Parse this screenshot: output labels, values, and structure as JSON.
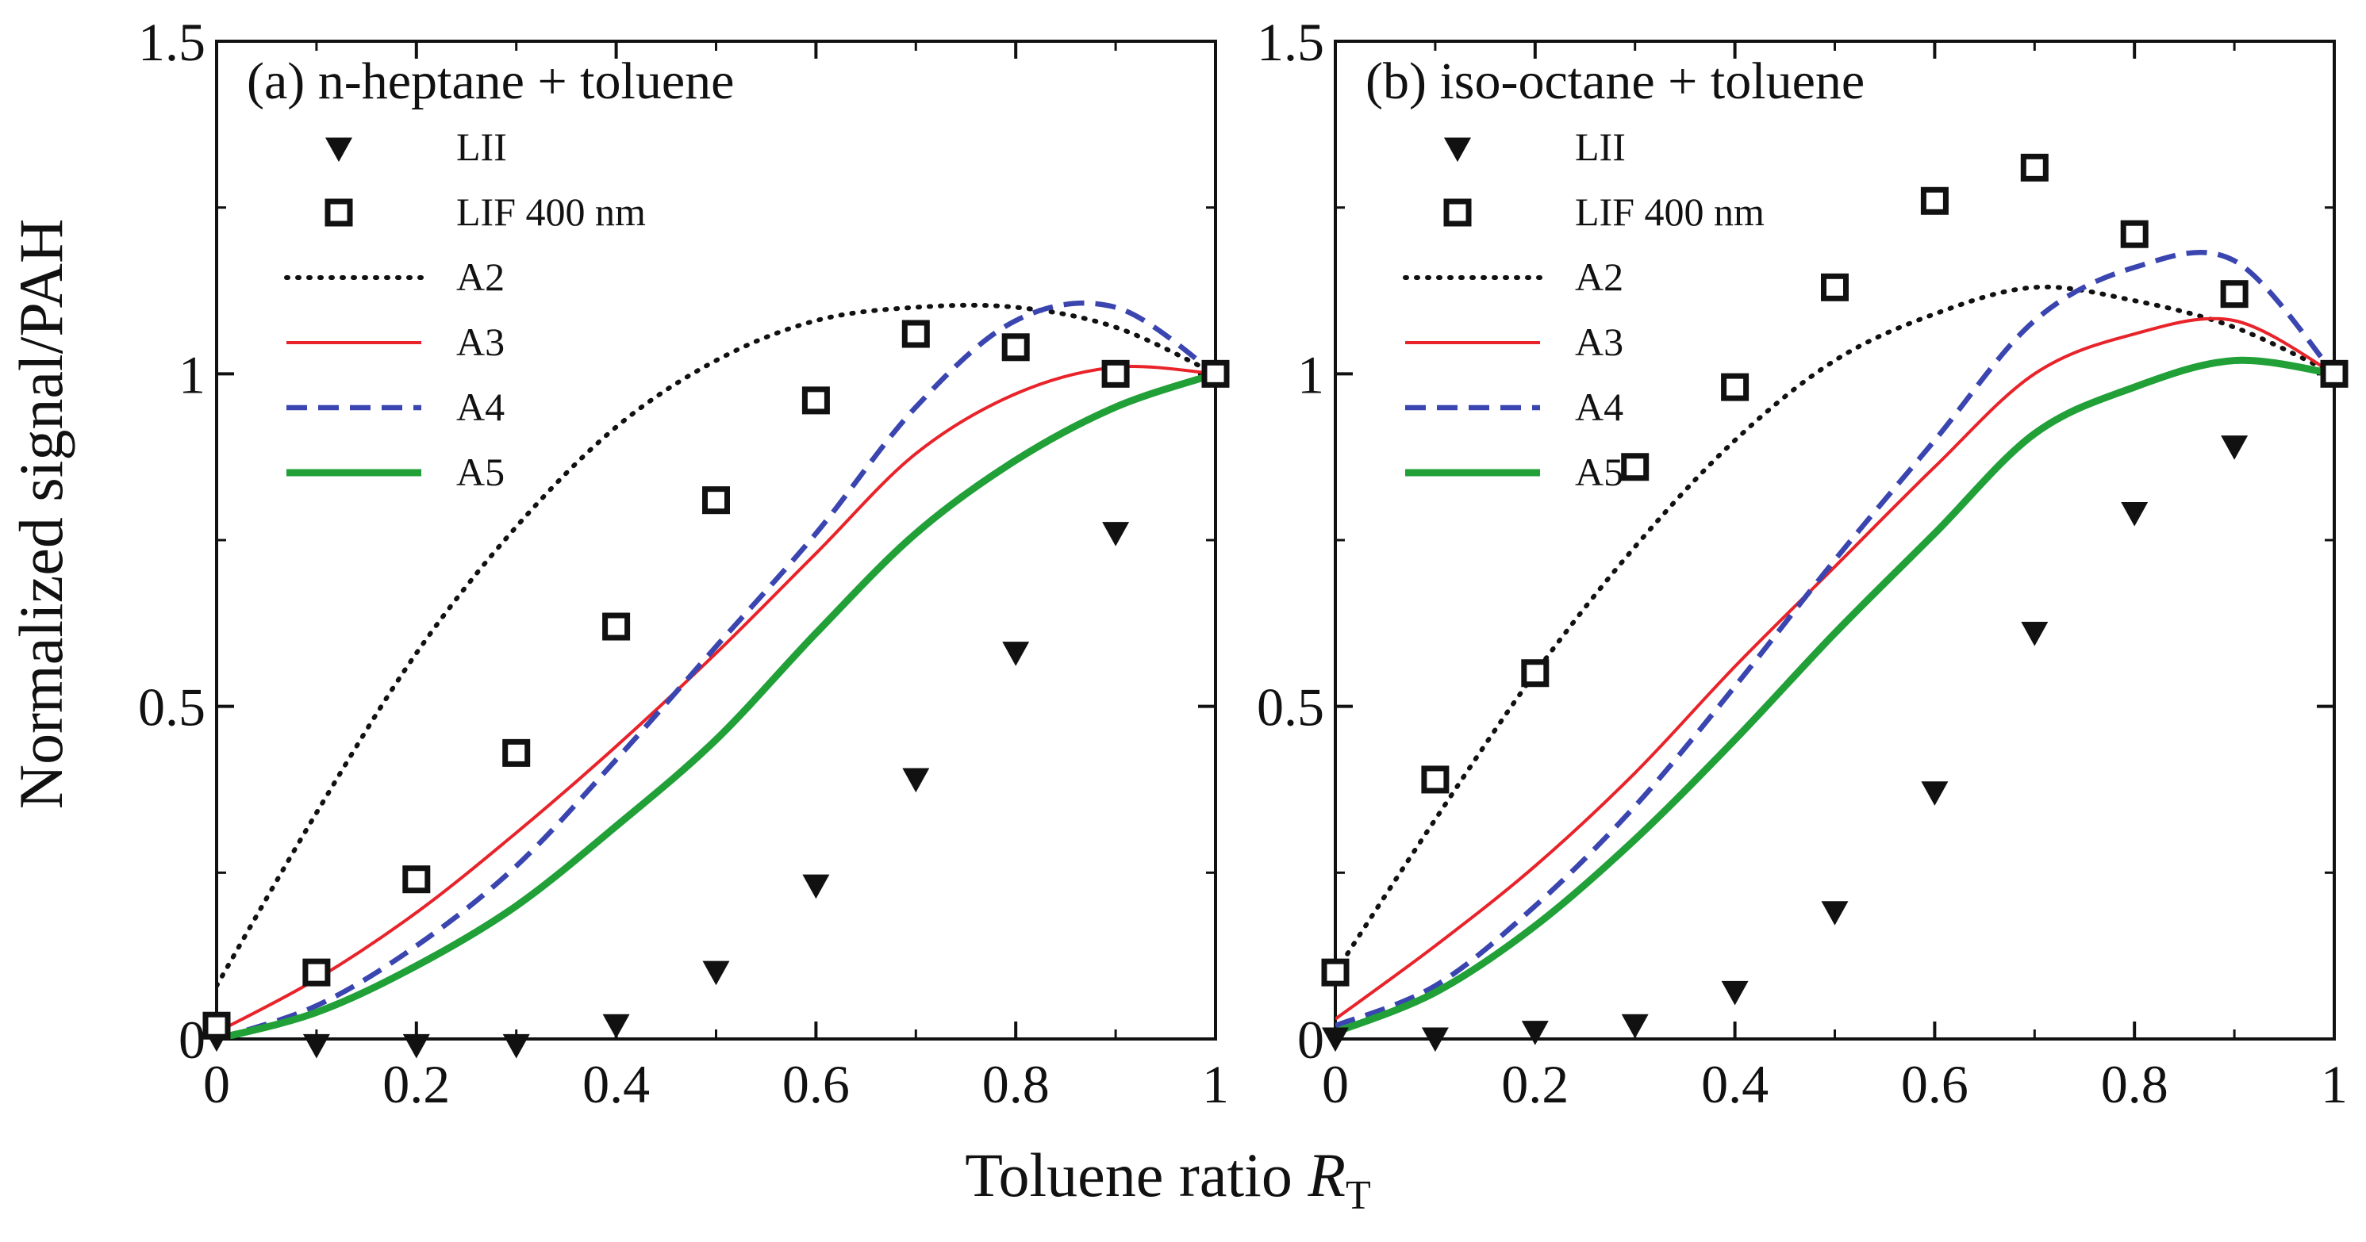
{
  "figure": {
    "ylabel": "Normalized signal/PAH",
    "xlabel_main": "Toluene ratio ",
    "xlabel_italic": "R",
    "xlabel_sub": "T"
  },
  "chart_data": [
    {
      "type": "scatter",
      "title": "(a) n-heptane + toluene",
      "xlim": [
        0,
        1
      ],
      "ylim": [
        0,
        1.5
      ],
      "xticks": [
        "0",
        "0.2",
        "0.4",
        "0.6",
        "0.8",
        "1"
      ],
      "yticks": [
        "0",
        "0.5",
        "1",
        "1.5"
      ],
      "grid": false,
      "legend_position": "top-left",
      "series": [
        {
          "name": "LII",
          "kind": "marker-triangle-down",
          "color": "#111111",
          "x": [
            0,
            0.1,
            0.2,
            0.3,
            0.4,
            0.5,
            0.6,
            0.7,
            0.8,
            0.9,
            1.0
          ],
          "y": [
            0.0,
            -0.01,
            -0.01,
            -0.01,
            0.02,
            0.1,
            0.23,
            0.39,
            0.58,
            0.76,
            1.0
          ]
        },
        {
          "name": "LIF 400 nm",
          "kind": "marker-square-open",
          "color": "#111111",
          "x": [
            0,
            0.1,
            0.2,
            0.3,
            0.4,
            0.5,
            0.6,
            0.7,
            0.8,
            0.9,
            1.0
          ],
          "y": [
            0.02,
            0.1,
            0.24,
            0.43,
            0.62,
            0.81,
            0.96,
            1.06,
            1.04,
            1.0,
            1.0
          ]
        },
        {
          "name": "A2",
          "kind": "line-dotted",
          "color": "#111111",
          "x": [
            0,
            0.1,
            0.2,
            0.3,
            0.4,
            0.5,
            0.6,
            0.7,
            0.8,
            0.9,
            1.0
          ],
          "y": [
            0.08,
            0.34,
            0.58,
            0.77,
            0.92,
            1.02,
            1.08,
            1.1,
            1.1,
            1.07,
            1.0
          ]
        },
        {
          "name": "A3",
          "kind": "line-solid-thin",
          "color": "#e8232a",
          "x": [
            0,
            0.1,
            0.2,
            0.3,
            0.4,
            0.5,
            0.6,
            0.7,
            0.8,
            0.9,
            1.0
          ],
          "y": [
            0.01,
            0.09,
            0.19,
            0.31,
            0.44,
            0.58,
            0.73,
            0.88,
            0.97,
            1.01,
            1.0
          ]
        },
        {
          "name": "A4",
          "kind": "line-dashed",
          "color": "#3a45b0",
          "x": [
            0,
            0.1,
            0.2,
            0.3,
            0.4,
            0.5,
            0.6,
            0.7,
            0.8,
            0.9,
            1.0
          ],
          "y": [
            0.0,
            0.05,
            0.14,
            0.26,
            0.42,
            0.59,
            0.76,
            0.95,
            1.08,
            1.1,
            1.0
          ]
        },
        {
          "name": "A5",
          "kind": "line-solid-thick",
          "color": "#21a038",
          "x": [
            0,
            0.1,
            0.2,
            0.3,
            0.4,
            0.5,
            0.6,
            0.7,
            0.8,
            0.9,
            1.0
          ],
          "y": [
            0.0,
            0.04,
            0.11,
            0.2,
            0.32,
            0.45,
            0.61,
            0.76,
            0.87,
            0.95,
            1.0
          ]
        }
      ]
    },
    {
      "type": "scatter",
      "title": "(b) iso-octane + toluene",
      "xlim": [
        0,
        1
      ],
      "ylim": [
        0,
        1.5
      ],
      "xticks": [
        "0",
        "0.2",
        "0.4",
        "0.6",
        "0.8",
        "1"
      ],
      "yticks": [
        "0",
        "0.5",
        "1",
        "1.5"
      ],
      "grid": false,
      "legend_position": "top-left",
      "series": [
        {
          "name": "LII",
          "kind": "marker-triangle-down",
          "color": "#111111",
          "x": [
            0,
            0.1,
            0.2,
            0.3,
            0.4,
            0.5,
            0.6,
            0.7,
            0.8,
            0.9,
            1.0
          ],
          "y": [
            0.0,
            0.0,
            0.01,
            0.02,
            0.07,
            0.19,
            0.37,
            0.61,
            0.79,
            0.89,
            1.0
          ]
        },
        {
          "name": "LIF 400 nm",
          "kind": "marker-square-open",
          "color": "#111111",
          "x": [
            0,
            0.1,
            0.2,
            0.3,
            0.4,
            0.5,
            0.6,
            0.7,
            0.8,
            0.9,
            1.0
          ],
          "y": [
            0.1,
            0.39,
            0.55,
            0.86,
            0.98,
            1.13,
            1.26,
            1.31,
            1.21,
            1.12,
            1.0
          ]
        },
        {
          "name": "A2",
          "kind": "line-dotted",
          "color": "#111111",
          "x": [
            0,
            0.1,
            0.2,
            0.3,
            0.4,
            0.5,
            0.6,
            0.7,
            0.8,
            0.9,
            1.0
          ],
          "y": [
            0.1,
            0.33,
            0.55,
            0.74,
            0.9,
            1.02,
            1.09,
            1.13,
            1.11,
            1.07,
            1.0
          ]
        },
        {
          "name": "A3",
          "kind": "line-solid-thin",
          "color": "#e8232a",
          "x": [
            0,
            0.1,
            0.2,
            0.3,
            0.4,
            0.5,
            0.6,
            0.7,
            0.8,
            0.9,
            1.0
          ],
          "y": [
            0.03,
            0.14,
            0.26,
            0.4,
            0.56,
            0.71,
            0.86,
            1.0,
            1.06,
            1.08,
            1.0
          ]
        },
        {
          "name": "A4",
          "kind": "line-dashed",
          "color": "#3a45b0",
          "x": [
            0,
            0.1,
            0.2,
            0.3,
            0.4,
            0.5,
            0.6,
            0.7,
            0.8,
            0.9,
            1.0
          ],
          "y": [
            0.02,
            0.08,
            0.2,
            0.35,
            0.53,
            0.72,
            0.9,
            1.08,
            1.16,
            1.17,
            1.0
          ]
        },
        {
          "name": "A5",
          "kind": "line-solid-thick",
          "color": "#21a038",
          "x": [
            0,
            0.1,
            0.2,
            0.3,
            0.4,
            0.5,
            0.6,
            0.7,
            0.8,
            0.9,
            1.0
          ],
          "y": [
            0.01,
            0.07,
            0.17,
            0.3,
            0.45,
            0.61,
            0.76,
            0.91,
            0.98,
            1.02,
            1.0
          ]
        }
      ]
    }
  ]
}
